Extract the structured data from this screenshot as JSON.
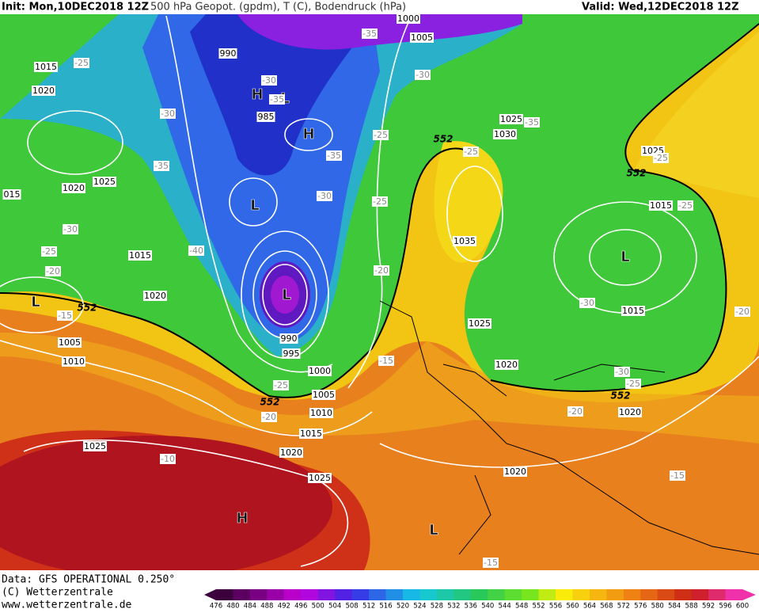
{
  "header": {
    "init": "Init: Mon,10DEC2018 12Z",
    "title": "500 hPa Geopot. (gpdm), T (C), Bodendruck (hPa)",
    "valid": "Valid: Wed,12DEC2018 12Z"
  },
  "footer": {
    "data": "Data: GFS OPERATIONAL 0.250°",
    "copyright": "(C) Wetterzentrale",
    "url": "www.wetterzentrale.de"
  },
  "legend": {
    "levels": [
      476,
      480,
      484,
      488,
      492,
      496,
      500,
      504,
      508,
      512,
      516,
      520,
      524,
      528,
      532,
      536,
      540,
      544,
      548,
      552,
      556,
      560,
      564,
      568,
      572,
      576,
      580,
      584,
      588,
      592,
      596,
      600
    ]
  },
  "map": {
    "centers": [
      "H",
      "L",
      "H",
      "L",
      "L",
      "L",
      "L",
      "H",
      "L"
    ],
    "isobar_labels": [
      "1015",
      "1020",
      "1025",
      "1020",
      "1015",
      "1020",
      "1005",
      "1010",
      "990",
      "985",
      "990",
      "995",
      "1000",
      "1005",
      "1010",
      "1015",
      "1020",
      "1025",
      "1025",
      "1030",
      "1025",
      "1035",
      "1025",
      "1020",
      "1015",
      "1015",
      "1025",
      "1020",
      "1020",
      "1000",
      "1005",
      "015"
    ],
    "temperature_labels": [
      "-25",
      "-30",
      "-35",
      "-30",
      "-25",
      "-20",
      "-15",
      "-40",
      "-30",
      "-35",
      "-35",
      "-30",
      "-25",
      "-25",
      "-20",
      "-15",
      "-25",
      "-20",
      "-10",
      "-35",
      "-30",
      "-35",
      "-25",
      "-25",
      "-30",
      "-30",
      "-25",
      "-20",
      "-15",
      "-15",
      "-20",
      "-25"
    ],
    "height_labels": [
      "552",
      "552",
      "552",
      "552",
      "552"
    ]
  }
}
